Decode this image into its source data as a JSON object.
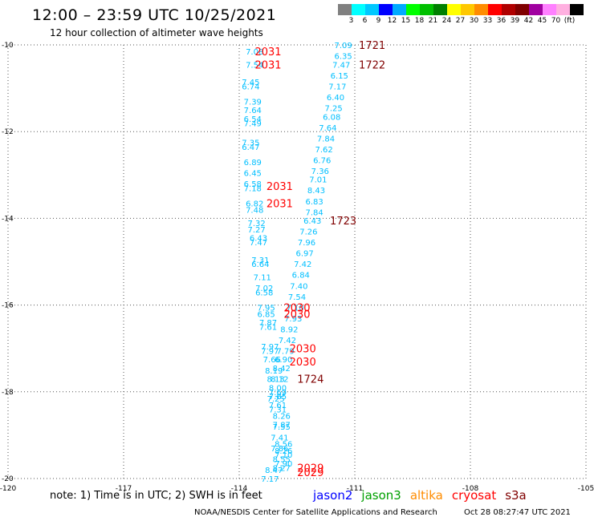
{
  "header": {
    "title": "12:00 – 23:59 UTC 10/25/2021",
    "subtitle": "12 hour collection of altimeter wave heights"
  },
  "legend": {
    "colors": [
      "#808080",
      "#00ffff",
      "#00c8ff",
      "#0000ff",
      "#00aaff",
      "#00ff00",
      "#00c000",
      "#008000",
      "#ffff00",
      "#ffc800",
      "#ff8c00",
      "#ff0000",
      "#b00000",
      "#800000",
      "#a000a0",
      "#ff80ff",
      "#ffb0e0",
      "#000000"
    ],
    "labels": [
      "3",
      "6",
      "9",
      "12",
      "15",
      "18",
      "21",
      "24",
      "27",
      "30",
      "33",
      "36",
      "39",
      "42",
      "45",
      "70",
      "(ft)"
    ]
  },
  "footer": {
    "note": "note:  1) Time is in UTC;  2) SWH is in feet",
    "satellites": [
      {
        "name": "jason2",
        "color": "#0000ff"
      },
      {
        "name": "jason3",
        "color": "#00a000"
      },
      {
        "name": "altika",
        "color": "#ff8c00"
      },
      {
        "name": "cryosat",
        "color": "#ff0000"
      },
      {
        "name": "s3a",
        "color": "#800000"
      }
    ],
    "credit": "NOAA/NESDIS Center for Satellite Applications and Research",
    "timestamp": "Oct 28 08:27:47 UTC 2021"
  },
  "chart_data": {
    "type": "scatter",
    "title": "12:00 – 23:59 UTC 10/25/2021",
    "xlim": [
      -120,
      -105
    ],
    "ylim": [
      -20,
      -10
    ],
    "x_ticks": [
      -120,
      -117,
      -114,
      -111,
      -108,
      -105
    ],
    "y_ticks": [
      -10,
      -12,
      -14,
      -16,
      -18,
      -20
    ],
    "grid": true,
    "wave_points": [
      {
        "lon": -111.3,
        "lat": -10.0,
        "v": "7.09"
      },
      {
        "lon": -111.3,
        "lat": -10.25,
        "v": "6.35"
      },
      {
        "lon": -111.35,
        "lat": -10.45,
        "v": "7.47"
      },
      {
        "lon": -111.4,
        "lat": -10.7,
        "v": "6.15"
      },
      {
        "lon": -111.45,
        "lat": -10.95,
        "v": "7.17"
      },
      {
        "lon": -111.5,
        "lat": -11.2,
        "v": "6.40"
      },
      {
        "lon": -111.55,
        "lat": -11.45,
        "v": "7.25"
      },
      {
        "lon": -111.6,
        "lat": -11.65,
        "v": "6.08"
      },
      {
        "lon": -111.7,
        "lat": -11.9,
        "v": "7.64"
      },
      {
        "lon": -111.75,
        "lat": -12.15,
        "v": "7.84"
      },
      {
        "lon": -111.8,
        "lat": -12.4,
        "v": "7.62"
      },
      {
        "lon": -111.85,
        "lat": -12.65,
        "v": "6.76"
      },
      {
        "lon": -111.9,
        "lat": -12.9,
        "v": "7.36"
      },
      {
        "lon": -111.95,
        "lat": -13.1,
        "v": "7.01"
      },
      {
        "lon": -112.0,
        "lat": -13.35,
        "v": "8.43"
      },
      {
        "lon": -112.05,
        "lat": -13.6,
        "v": "6.83"
      },
      {
        "lon": -112.05,
        "lat": -13.85,
        "v": "7.84"
      },
      {
        "lon": -112.1,
        "lat": -14.05,
        "v": "6.43"
      },
      {
        "lon": -112.2,
        "lat": -14.3,
        "v": "7.26"
      },
      {
        "lon": -112.25,
        "lat": -14.55,
        "v": "7.96"
      },
      {
        "lon": -112.3,
        "lat": -14.8,
        "v": "6.97"
      },
      {
        "lon": -112.35,
        "lat": -15.05,
        "v": "7.42"
      },
      {
        "lon": -112.4,
        "lat": -15.3,
        "v": "6.84"
      },
      {
        "lon": -112.45,
        "lat": -15.55,
        "v": "7.40"
      },
      {
        "lon": -112.5,
        "lat": -15.8,
        "v": "7.54"
      },
      {
        "lon": -112.55,
        "lat": -16.05,
        "v": "7.10"
      },
      {
        "lon": -112.6,
        "lat": -16.3,
        "v": "7.93"
      },
      {
        "lon": -112.7,
        "lat": -16.55,
        "v": "8.92"
      },
      {
        "lon": -112.75,
        "lat": -16.8,
        "v": "7.42"
      },
      {
        "lon": -112.8,
        "lat": -17.05,
        "v": "7.79"
      },
      {
        "lon": -112.85,
        "lat": -17.25,
        "v": "6.90"
      },
      {
        "lon": -112.9,
        "lat": -17.45,
        "v": "8.42"
      },
      {
        "lon": -112.95,
        "lat": -17.7,
        "v": "8.12"
      },
      {
        "lon": -113.0,
        "lat": -17.9,
        "v": "8.00"
      },
      {
        "lon": -113.05,
        "lat": -18.15,
        "v": "7.25"
      },
      {
        "lon": -113.6,
        "lat": -10.15,
        "v": "7.08"
      },
      {
        "lon": -113.6,
        "lat": -10.45,
        "v": "7.54"
      },
      {
        "lon": -113.7,
        "lat": -10.85,
        "v": "7.45"
      },
      {
        "lon": -113.7,
        "lat": -10.95,
        "v": "6.74"
      },
      {
        "lon": -113.65,
        "lat": -11.3,
        "v": "7.39"
      },
      {
        "lon": -113.65,
        "lat": -11.5,
        "v": "7.64"
      },
      {
        "lon": -113.65,
        "lat": -11.7,
        "v": "6.54"
      },
      {
        "lon": -113.65,
        "lat": -11.8,
        "v": "7.49"
      },
      {
        "lon": -113.7,
        "lat": -12.25,
        "v": "7.35"
      },
      {
        "lon": -113.7,
        "lat": -12.35,
        "v": "6.47"
      },
      {
        "lon": -113.65,
        "lat": -12.7,
        "v": "6.89"
      },
      {
        "lon": -113.65,
        "lat": -12.95,
        "v": "6.45"
      },
      {
        "lon": -113.65,
        "lat": -13.2,
        "v": "6.58"
      },
      {
        "lon": -113.65,
        "lat": -13.3,
        "v": "7.18"
      },
      {
        "lon": -113.6,
        "lat": -13.65,
        "v": "6.82"
      },
      {
        "lon": -113.6,
        "lat": -13.8,
        "v": "7.48"
      },
      {
        "lon": -113.55,
        "lat": -14.1,
        "v": "7.32"
      },
      {
        "lon": -113.55,
        "lat": -14.25,
        "v": "7.27"
      },
      {
        "lon": -113.5,
        "lat": -14.45,
        "v": "6.43"
      },
      {
        "lon": -113.5,
        "lat": -14.55,
        "v": "7.47"
      },
      {
        "lon": -113.45,
        "lat": -14.95,
        "v": "7.31"
      },
      {
        "lon": -113.45,
        "lat": -15.05,
        "v": "6.64"
      },
      {
        "lon": -113.4,
        "lat": -15.35,
        "v": "7.11"
      },
      {
        "lon": -113.35,
        "lat": -15.6,
        "v": "7.02"
      },
      {
        "lon": -113.35,
        "lat": -15.7,
        "v": "6.58"
      },
      {
        "lon": -113.3,
        "lat": -16.05,
        "v": "7.95"
      },
      {
        "lon": -113.3,
        "lat": -16.2,
        "v": "6.85"
      },
      {
        "lon": -113.25,
        "lat": -16.4,
        "v": "7.87"
      },
      {
        "lon": -113.25,
        "lat": -16.5,
        "v": "7.61"
      },
      {
        "lon": -113.2,
        "lat": -16.95,
        "v": "7.97"
      },
      {
        "lon": -113.2,
        "lat": -17.05,
        "v": "7.97"
      },
      {
        "lon": -113.15,
        "lat": -17.25,
        "v": "7.66"
      },
      {
        "lon": -113.1,
        "lat": -17.5,
        "v": "8.19"
      },
      {
        "lon": -113.05,
        "lat": -17.7,
        "v": "8.13"
      },
      {
        "lon": -113.0,
        "lat": -18.0,
        "v": "7.69"
      },
      {
        "lon": -113.0,
        "lat": -18.1,
        "v": "7.85"
      },
      {
        "lon": -113.0,
        "lat": -18.3,
        "v": "7.61"
      },
      {
        "lon": -113.0,
        "lat": -18.4,
        "v": "7.31"
      },
      {
        "lon": -112.9,
        "lat": -18.55,
        "v": "8.26"
      },
      {
        "lon": -112.9,
        "lat": -18.75,
        "v": "7.87"
      },
      {
        "lon": -112.9,
        "lat": -18.8,
        "v": "7.55"
      },
      {
        "lon": -112.95,
        "lat": -19.05,
        "v": "7.41"
      },
      {
        "lon": -112.95,
        "lat": -19.3,
        "v": "7.86"
      },
      {
        "lon": -112.85,
        "lat": -19.2,
        "v": "8.56"
      },
      {
        "lon": -112.85,
        "lat": -19.35,
        "v": "8.26"
      },
      {
        "lon": -112.85,
        "lat": -19.45,
        "v": "7.10"
      },
      {
        "lon": -112.9,
        "lat": -19.55,
        "v": "8.55"
      },
      {
        "lon": -112.85,
        "lat": -19.65,
        "v": "7.90"
      },
      {
        "lon": -112.9,
        "lat": -19.75,
        "v": "8.27"
      },
      {
        "lon": -113.1,
        "lat": -19.8,
        "v": "8.47"
      },
      {
        "lon": -113.2,
        "lat": -20.0,
        "v": "7.17"
      }
    ],
    "time_labels": [
      {
        "lon": -110.55,
        "lat": -10.0,
        "t": "1721",
        "color": "#800000"
      },
      {
        "lon": -110.55,
        "lat": -10.45,
        "t": "1722",
        "color": "#800000"
      },
      {
        "lon": -111.3,
        "lat": -14.05,
        "t": "1723",
        "color": "#800000"
      },
      {
        "lon": -112.15,
        "lat": -17.7,
        "t": "1724",
        "color": "#800000"
      },
      {
        "lon": -113.25,
        "lat": -10.15,
        "t": "2031",
        "color": "#ff0000"
      },
      {
        "lon": -113.25,
        "lat": -10.45,
        "t": "2031",
        "color": "#ff0000"
      },
      {
        "lon": -112.95,
        "lat": -13.25,
        "t": "2031",
        "color": "#ff0000"
      },
      {
        "lon": -112.95,
        "lat": -13.65,
        "t": "2031",
        "color": "#ff0000"
      },
      {
        "lon": -112.5,
        "lat": -16.05,
        "t": "2030",
        "color": "#ff0000"
      },
      {
        "lon": -112.5,
        "lat": -16.2,
        "t": "2030",
        "color": "#ff0000"
      },
      {
        "lon": -112.35,
        "lat": -17.0,
        "t": "2030",
        "color": "#ff0000"
      },
      {
        "lon": -112.35,
        "lat": -17.3,
        "t": "2030",
        "color": "#ff0000"
      },
      {
        "lon": -112.15,
        "lat": -19.75,
        "t": "2029",
        "color": "#ff0000"
      },
      {
        "lon": -112.15,
        "lat": -19.85,
        "t": "2029",
        "color": "#ff0000"
      }
    ]
  }
}
